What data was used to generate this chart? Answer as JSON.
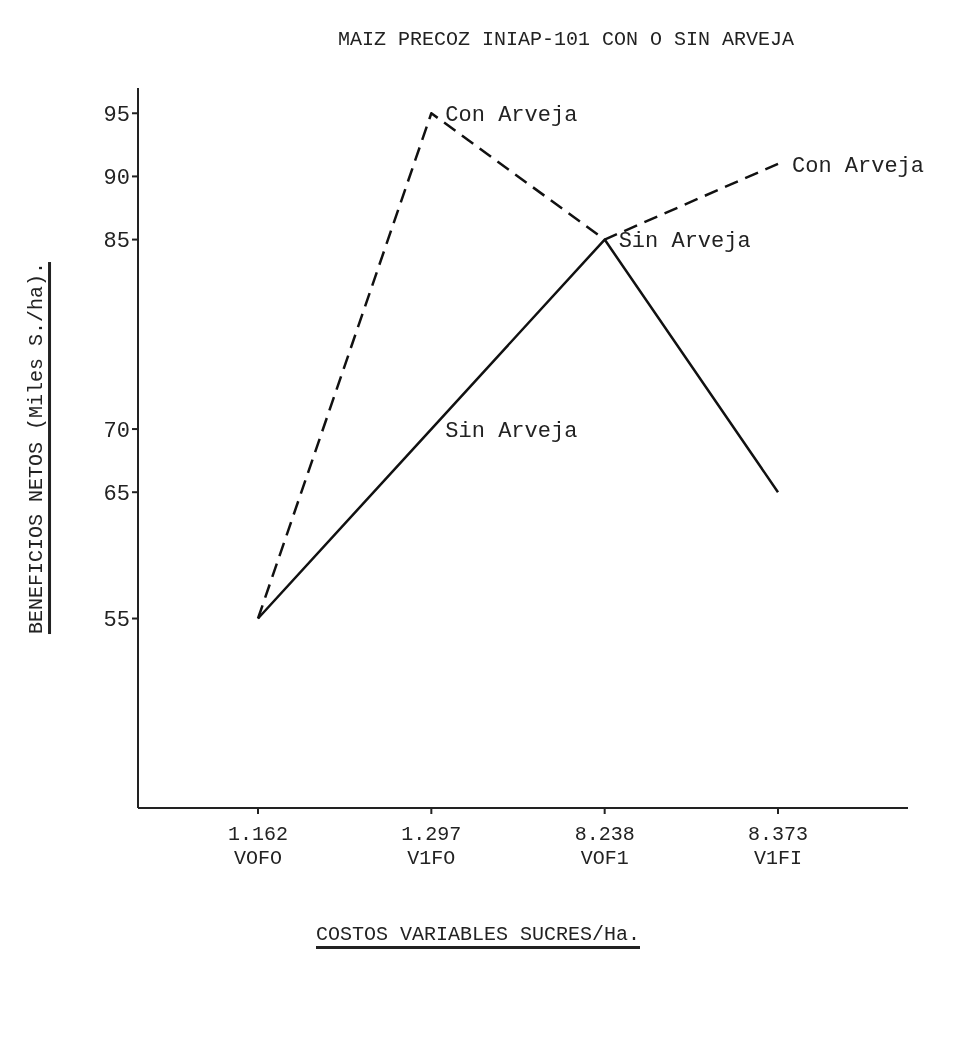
{
  "chart_data": {
    "type": "line",
    "title": "MAIZ PRECOZ INIAP-101 CON O SIN ARVEJA",
    "xlabel": "COSTOS VARIABLES SUCRES/Ha.",
    "ylabel": "BENEFICIOS NETOS (Miles S./ha).",
    "categories": [
      "1.162\nVOFO",
      "1.297\nV1FO",
      "8.238\nVOF1",
      "8.373\nV1FI"
    ],
    "series": [
      {
        "color": "#111111",
        "line_style": "dashed",
        "values": [
          55,
          95,
          85,
          91
        ]
      },
      {
        "color": "#111111",
        "line_style": "solid",
        "values": [
          55,
          70,
          85,
          65
        ]
      }
    ],
    "annotations": [
      {
        "text": "Con Arveja",
        "x": "1.297\nV1FO",
        "y": 95
      },
      {
        "text": "Con Arveja",
        "x": "8.373\nV1FI",
        "y": 91
      },
      {
        "text": "Sin Arveja",
        "x": "8.238\nVOF1",
        "y": 85
      },
      {
        "text": "Sin Arveja",
        "x": "1.297\nV1FO",
        "y": 70
      }
    ],
    "ylim": [
      40,
      97
    ],
    "yticks": [
      55,
      65,
      70,
      85,
      90,
      95
    ],
    "grid": false,
    "legend": false,
    "marker": "none"
  }
}
